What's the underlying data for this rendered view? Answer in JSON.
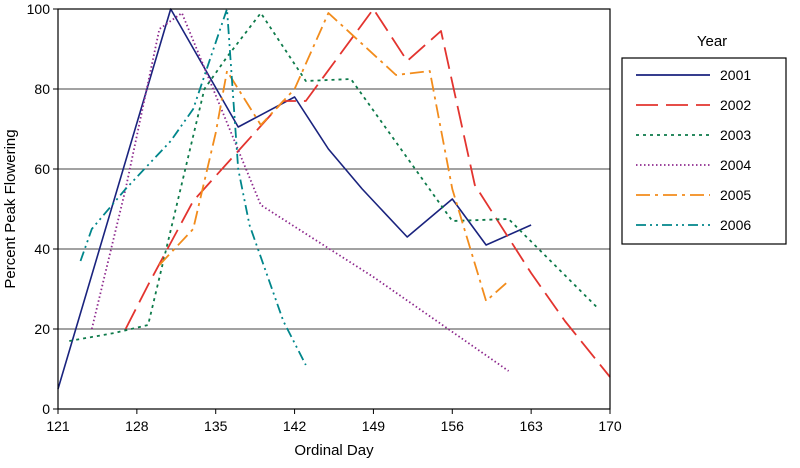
{
  "chart_data": {
    "type": "line",
    "title": "",
    "xlabel": "Ordinal Day",
    "ylabel": "Percent Peak Flowering",
    "xlim": [
      121,
      170
    ],
    "ylim": [
      0,
      100
    ],
    "x_ticks": [
      121,
      128,
      135,
      142,
      149,
      156,
      163,
      170
    ],
    "y_ticks": [
      0,
      20,
      40,
      60,
      80,
      100
    ],
    "grid": "horizontal",
    "legend": {
      "title": "Year",
      "position": "right"
    },
    "series": [
      {
        "name": "2001",
        "color": "#1a237e",
        "dash": "solid",
        "points": [
          [
            121,
            5
          ],
          [
            131,
            100
          ],
          [
            137,
            70.5
          ],
          [
            142,
            78
          ],
          [
            145,
            65
          ],
          [
            148,
            55
          ],
          [
            152,
            43
          ],
          [
            156,
            52.5
          ],
          [
            159,
            41
          ],
          [
            163,
            46
          ]
        ]
      },
      {
        "name": "2002",
        "color": "#e3342f",
        "dash": "long-dash",
        "points": [
          [
            127,
            20
          ],
          [
            129,
            31
          ],
          [
            133,
            52
          ],
          [
            141,
            77
          ],
          [
            143,
            77
          ],
          [
            149,
            100
          ],
          [
            152,
            87
          ],
          [
            155,
            94.5
          ],
          [
            158,
            56
          ],
          [
            163,
            34
          ],
          [
            166,
            22
          ],
          [
            170,
            8
          ]
        ]
      },
      {
        "name": "2003",
        "color": "#0d7a4a",
        "dash": "dot",
        "points": [
          [
            122,
            17
          ],
          [
            126,
            19
          ],
          [
            129,
            21
          ],
          [
            134,
            80
          ],
          [
            136,
            88
          ],
          [
            139,
            99
          ],
          [
            143,
            82
          ],
          [
            147,
            82.5
          ],
          [
            156,
            47
          ],
          [
            161,
            47.5
          ],
          [
            169,
            25
          ]
        ]
      },
      {
        "name": "2004",
        "color": "#8e2a8e",
        "dash": "fine-dot",
        "points": [
          [
            124,
            20
          ],
          [
            127,
            55
          ],
          [
            130,
            95
          ],
          [
            132,
            99
          ],
          [
            139,
            51
          ],
          [
            149,
            33
          ],
          [
            161,
            9.5
          ]
        ]
      },
      {
        "name": "2005",
        "color": "#f28c1c",
        "dash": "dash-dot",
        "points": [
          [
            130,
            36
          ],
          [
            133,
            45
          ],
          [
            135,
            69
          ],
          [
            136,
            84.5
          ],
          [
            139,
            71
          ],
          [
            142,
            80
          ],
          [
            145,
            99
          ],
          [
            151,
            83.5
          ],
          [
            154,
            84.5
          ],
          [
            156,
            55
          ],
          [
            159,
            27
          ],
          [
            161,
            32
          ]
        ]
      },
      {
        "name": "2006",
        "color": "#00868b",
        "dash": "dash-dot-dot",
        "points": [
          [
            123,
            37
          ],
          [
            124,
            45
          ],
          [
            127,
            55
          ],
          [
            131,
            67
          ],
          [
            133,
            75
          ],
          [
            136,
            100
          ],
          [
            137,
            60
          ],
          [
            138,
            46
          ],
          [
            141,
            22
          ],
          [
            143,
            11
          ]
        ]
      }
    ]
  }
}
